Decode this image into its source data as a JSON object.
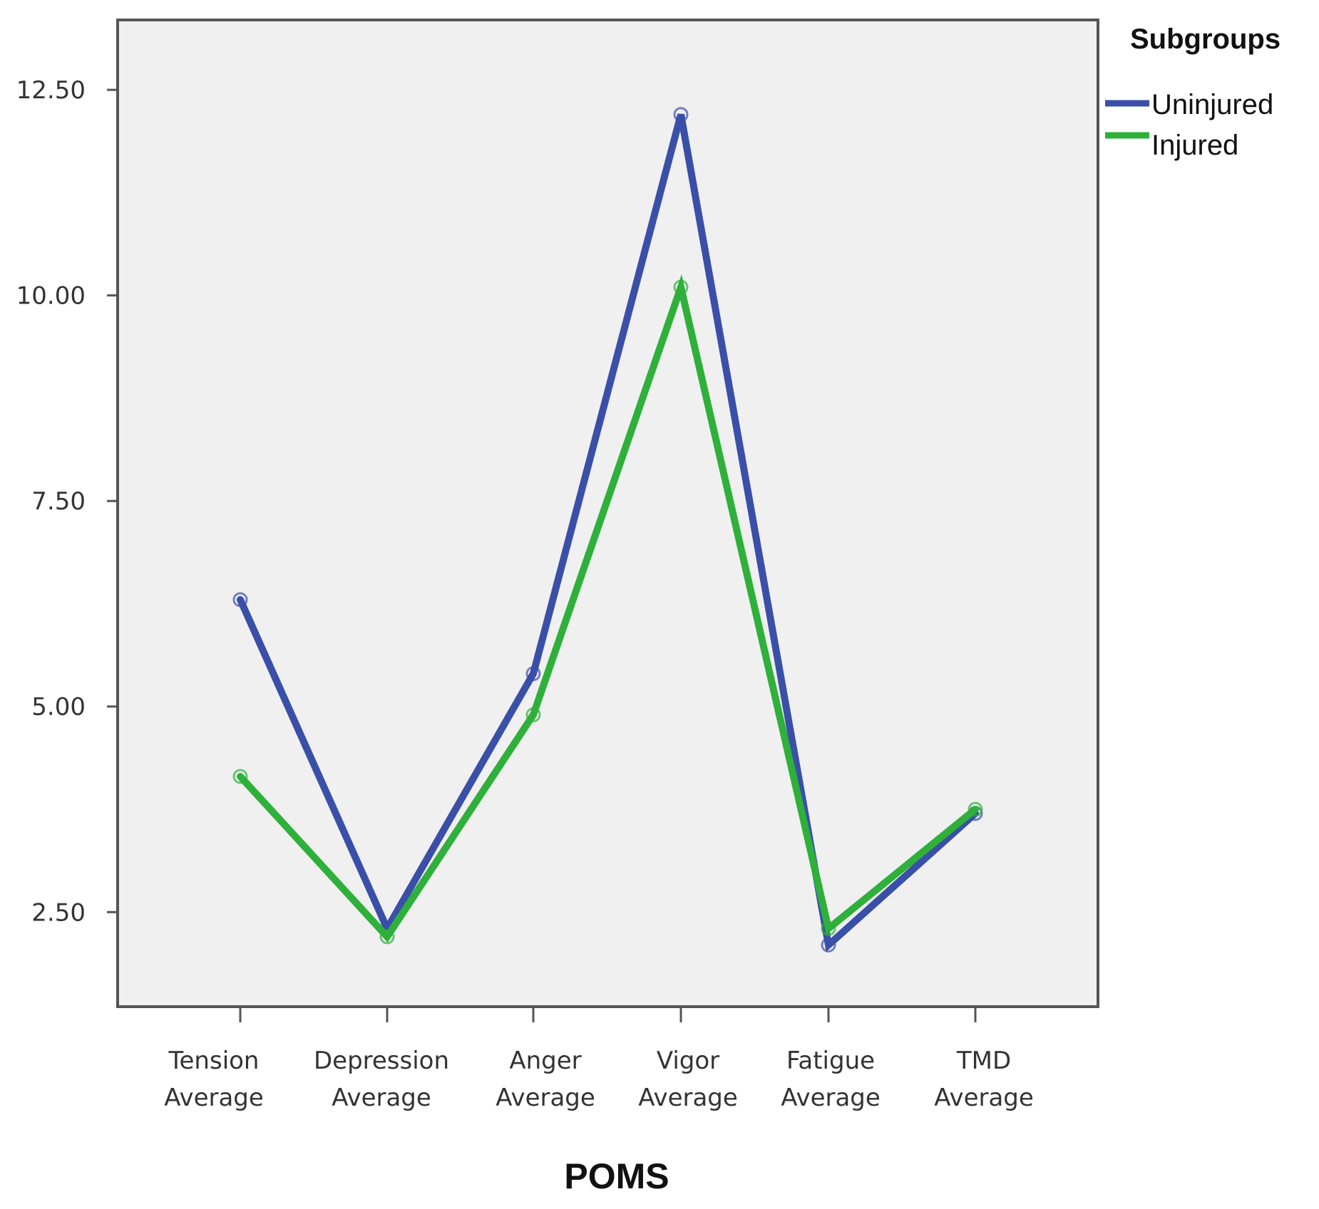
{
  "chart_data": {
    "type": "line",
    "categories": [
      [
        "Tension",
        "Average"
      ],
      [
        "Depression",
        "Average"
      ],
      [
        "Anger",
        "Average"
      ],
      [
        "Vigor",
        "Average"
      ],
      [
        "Fatigue",
        "Average"
      ],
      [
        "TMD",
        "Average"
      ]
    ],
    "series": [
      {
        "name": "Uninjured",
        "color": "#3a4fa8",
        "values": [
          6.3,
          2.3,
          5.4,
          12.2,
          2.1,
          3.7
        ]
      },
      {
        "name": "Injured",
        "color": "#2eb03a",
        "values": [
          4.15,
          2.2,
          4.9,
          10.1,
          2.3,
          3.75
        ]
      }
    ],
    "xlabel": "POMS",
    "ylabel": "",
    "ylim": [
      1.35,
      13.35
    ],
    "yticks": [
      "2.50",
      "5.00",
      "7.50",
      "10.00",
      "12.50"
    ],
    "legend": {
      "title": "Subgroups",
      "position": "right"
    },
    "plot_background": "#f0f0f0",
    "grid": false
  }
}
